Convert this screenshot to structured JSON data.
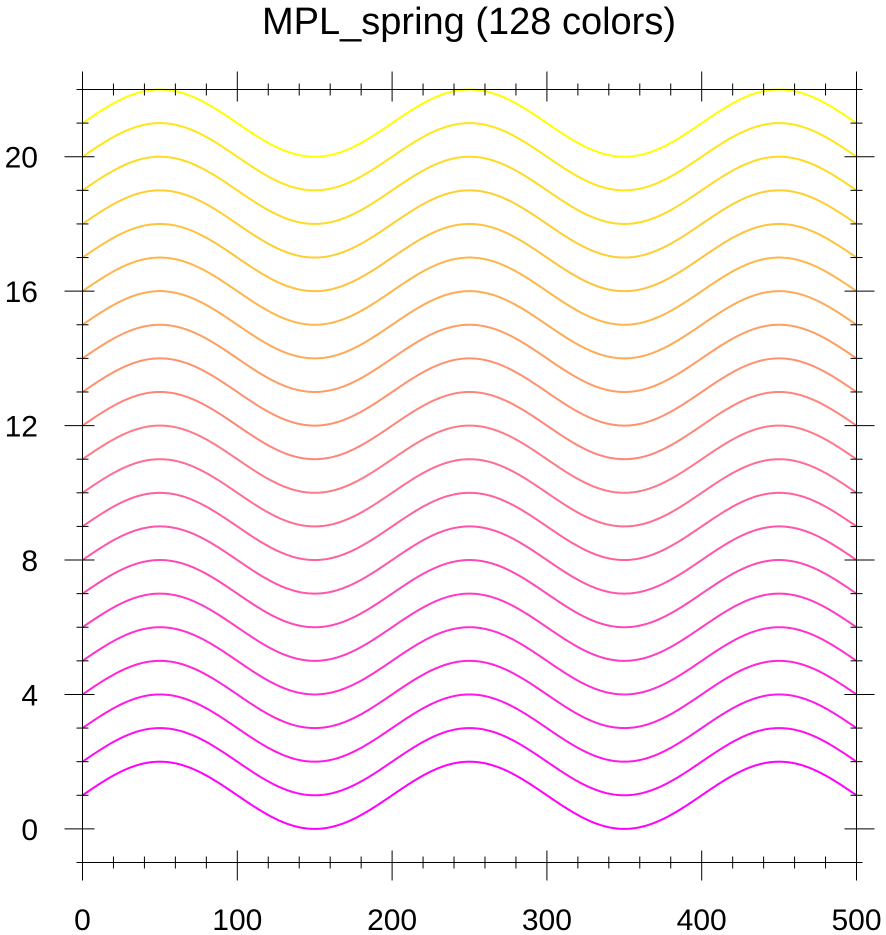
{
  "chart_data": {
    "type": "line",
    "title": "MPL_spring (128 colors)",
    "xlabel": "",
    "ylabel": "",
    "xlim": [
      0,
      500
    ],
    "ylim": [
      -1,
      22
    ],
    "x_ticks": [
      "0",
      "100",
      "200",
      "300",
      "400",
      "500"
    ],
    "x_tick_values": [
      0,
      100,
      200,
      300,
      400,
      500
    ],
    "y_ticks": [
      "0",
      "4",
      "8",
      "12",
      "16",
      "20"
    ],
    "y_tick_values": [
      0,
      4,
      8,
      12,
      16,
      20
    ],
    "x_minor_step": 20,
    "y_minor_step": 1,
    "grid": false,
    "legend": "none",
    "curve": {
      "function": "offset + sin(2*pi*x/200)",
      "x_start": 0,
      "x_end": 500,
      "x_step": 1,
      "amplitude": 1,
      "period": 200
    },
    "series": [
      {
        "offset": 1,
        "color": "#ff00ff"
      },
      {
        "offset": 2,
        "color": "#ff0cf3"
      },
      {
        "offset": 3,
        "color": "#ff18e7"
      },
      {
        "offset": 4,
        "color": "#ff24db"
      },
      {
        "offset": 5,
        "color": "#ff30cf"
      },
      {
        "offset": 6,
        "color": "#ff3cc3"
      },
      {
        "offset": 7,
        "color": "#ff48b7"
      },
      {
        "offset": 8,
        "color": "#ff55aa"
      },
      {
        "offset": 9,
        "color": "#ff619e"
      },
      {
        "offset": 10,
        "color": "#ff6d92"
      },
      {
        "offset": 11,
        "color": "#ff7986"
      },
      {
        "offset": 12,
        "color": "#ff857a"
      },
      {
        "offset": 13,
        "color": "#ff916e"
      },
      {
        "offset": 14,
        "color": "#ff9d62"
      },
      {
        "offset": 15,
        "color": "#ffaa55"
      },
      {
        "offset": 16,
        "color": "#ffb649"
      },
      {
        "offset": 17,
        "color": "#ffc23d"
      },
      {
        "offset": 18,
        "color": "#ffce31"
      },
      {
        "offset": 19,
        "color": "#ffda25"
      },
      {
        "offset": 20,
        "color": "#ffe619"
      },
      {
        "offset": 21,
        "color": "#ffff00"
      }
    ]
  }
}
